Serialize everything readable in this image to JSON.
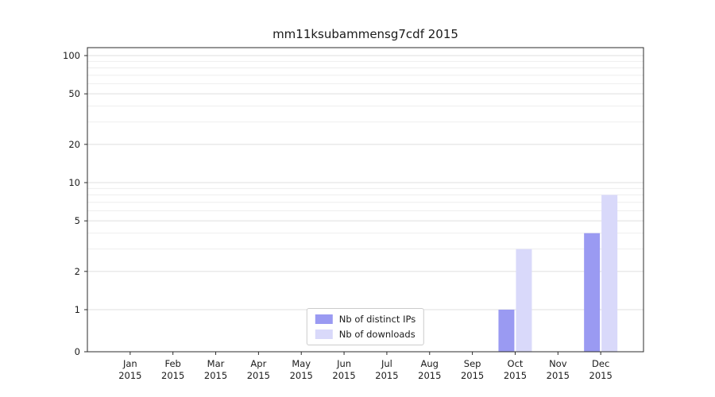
{
  "title": "mm11ksubammensg7cdf 2015",
  "chart_data": {
    "type": "bar",
    "scale": "symlog",
    "title": "mm11ksubammensg7cdf 2015",
    "categories": [
      "Jan 2015",
      "Feb 2015",
      "Mar 2015",
      "Apr 2015",
      "May 2015",
      "Jun 2015",
      "Jul 2015",
      "Aug 2015",
      "Sep 2015",
      "Oct 2015",
      "Nov 2015",
      "Dec 2015"
    ],
    "x_tick_months": [
      "Jan",
      "Feb",
      "Mar",
      "Apr",
      "May",
      "Jun",
      "Jul",
      "Aug",
      "Sep",
      "Oct",
      "Nov",
      "Dec"
    ],
    "x_tick_year": "2015",
    "series": [
      {
        "name": "Nb of distinct IPs",
        "color": "#9a9af2",
        "values": [
          0,
          0,
          0,
          0,
          0,
          0,
          0,
          0,
          0,
          1,
          0,
          4
        ]
      },
      {
        "name": "Nb of downloads",
        "color": "#d9d9fa",
        "values": [
          0,
          0,
          0,
          0,
          0,
          0,
          0,
          0,
          0,
          3,
          0,
          8
        ]
      }
    ],
    "y_ticks": [
      0,
      1,
      2,
      5,
      10,
      20,
      50,
      100
    ],
    "y_minor_ticks": [
      3,
      4,
      6,
      7,
      8,
      9,
      30,
      40,
      60,
      70,
      80,
      90
    ],
    "ylim": [
      0,
      115
    ],
    "xlabel": "",
    "ylabel": "",
    "grid": true,
    "legend_position": "lower center"
  },
  "colors": {
    "background": "#ffffff",
    "grid_major": "#dfdfdf",
    "grid_minor": "#eeeeee",
    "spine": "#2b2b2b",
    "text": "#1a1a1a",
    "legend_border": "#cccccc"
  }
}
